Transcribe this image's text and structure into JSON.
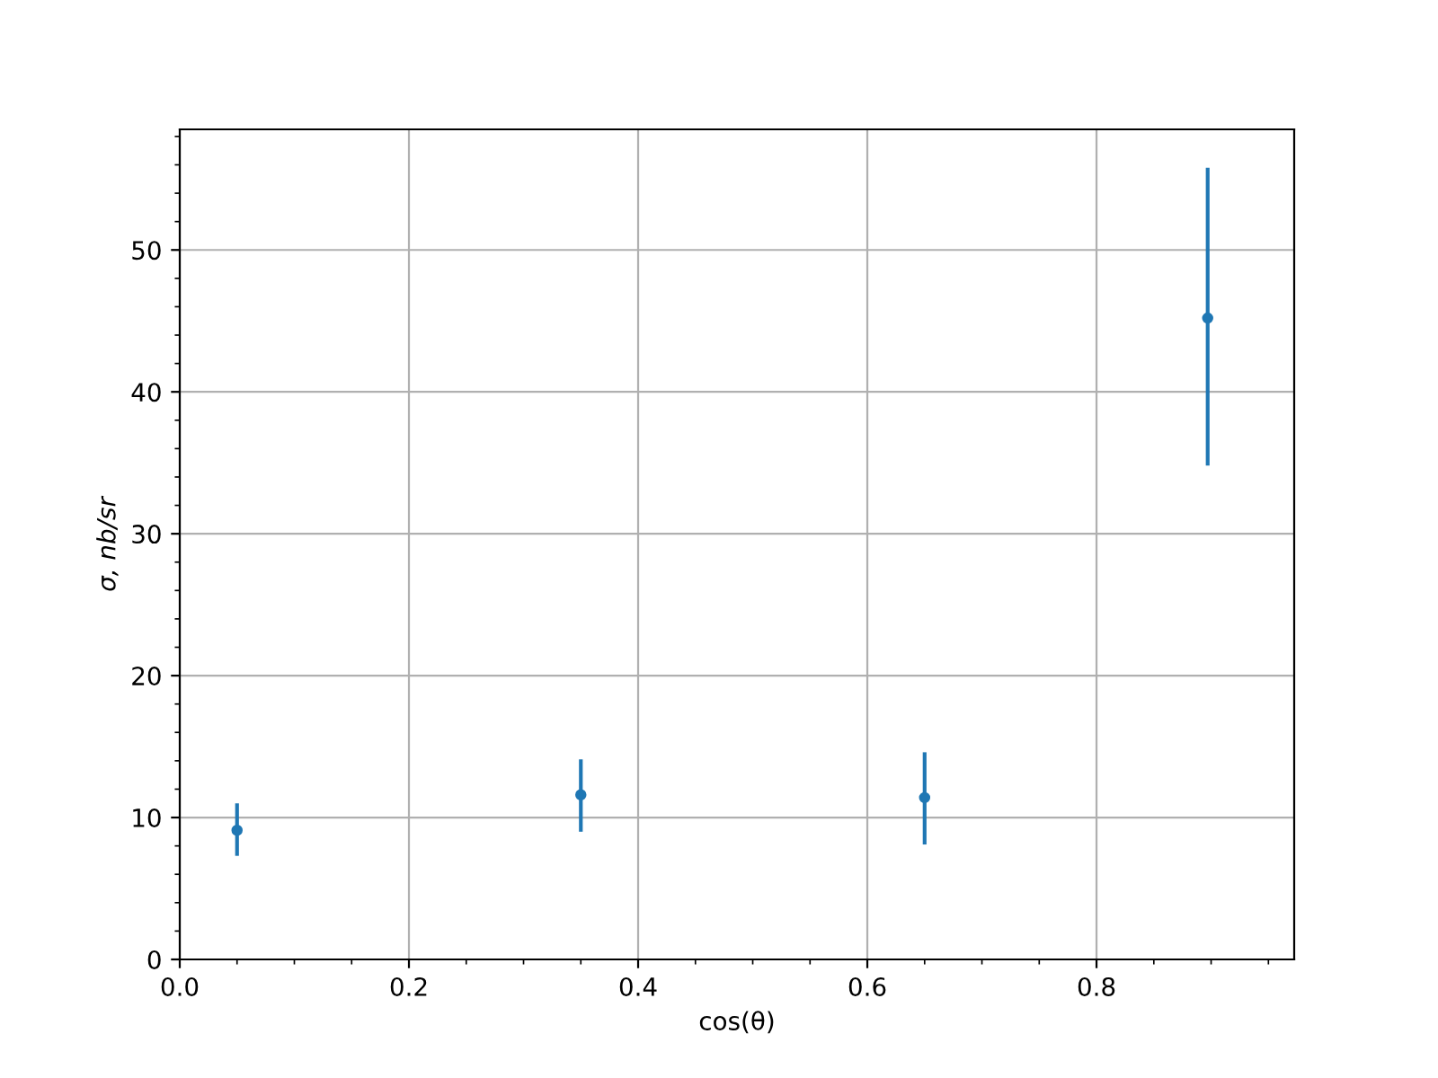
{
  "chart_data": {
    "type": "scatter",
    "xlabel": "cos(θ)",
    "ylabel": "σ, nb/sr",
    "x": [
      0.05,
      0.35,
      0.65,
      0.897
    ],
    "values": [
      9.1,
      11.6,
      11.4,
      45.2
    ],
    "errors": [
      [
        7.3,
        11.0
      ],
      [
        9.0,
        14.1
      ],
      [
        8.1,
        14.6
      ],
      [
        34.8,
        55.8
      ]
    ],
    "color": "#1f77b4",
    "marker": "circle",
    "grid": true,
    "xlim": [
      0,
      0.9725
    ],
    "xticks": [
      {
        "value": 0,
        "label": "0.0"
      },
      0.2,
      0.4,
      0.6,
      0.8
    ],
    "ylim": [
      0,
      58.5
    ],
    "yticks": [
      0,
      10,
      20,
      30,
      40,
      50
    ]
  }
}
